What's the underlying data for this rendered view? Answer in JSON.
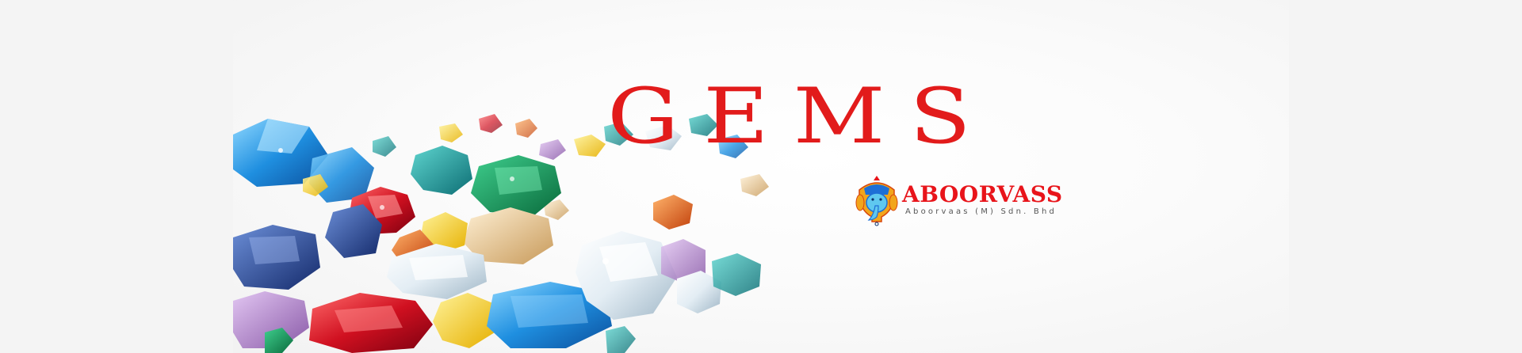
{
  "banner": {
    "headline": "GEMS",
    "brand": {
      "name": "ABOORVASS",
      "subtitle": "Aboorvaas (M) Sdn. Bhd",
      "emblem_icon": "ganesha-emblem-icon"
    },
    "photo": {
      "subject": "pile of colorful faceted gemstones"
    }
  },
  "colors": {
    "headline": "#e21b1b",
    "brand_name": "#e8141a",
    "page_background": "#f4f4f4",
    "banner_background": "#ffffff"
  }
}
